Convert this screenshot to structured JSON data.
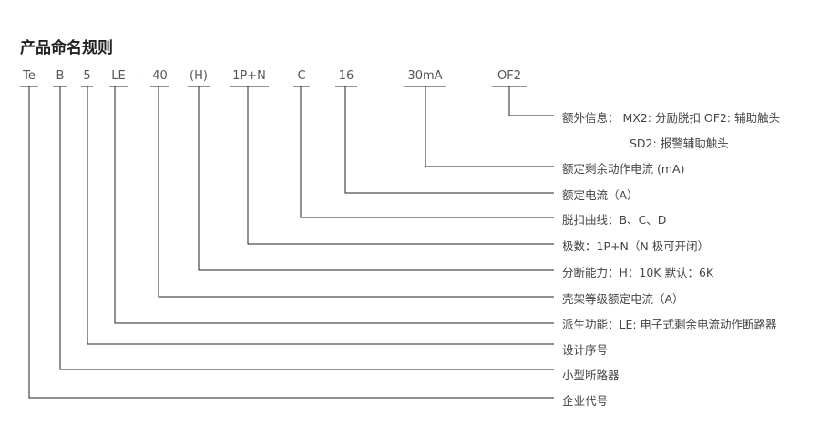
{
  "title": "产品命名规则",
  "codes": [
    "Te",
    "B",
    "5",
    "LE",
    "-",
    "40",
    "(H)",
    "1P+N",
    "C",
    "16",
    "30mA",
    "OF2"
  ],
  "descriptions": {
    "extra": "额外信息：  MX2: 分励脱扣 OF2: 辅助触头",
    "extra2": "SD2: 报警辅助触头",
    "rcd": "额定剩余动作电流 (mA)",
    "rated": "额定电流（A）",
    "curve": "脱扣曲线：B、C、D",
    "poles": "极数：1P+N（N 极可开闭）",
    "breaking": "分断能力：H：10K  默认：6K",
    "frame": "壳架等级额定电流（A）",
    "derived": "派生功能：LE: 电子式剩余电流动作断路器",
    "serial": "设计序号",
    "type": "小型断路器",
    "company": "企业代号"
  }
}
